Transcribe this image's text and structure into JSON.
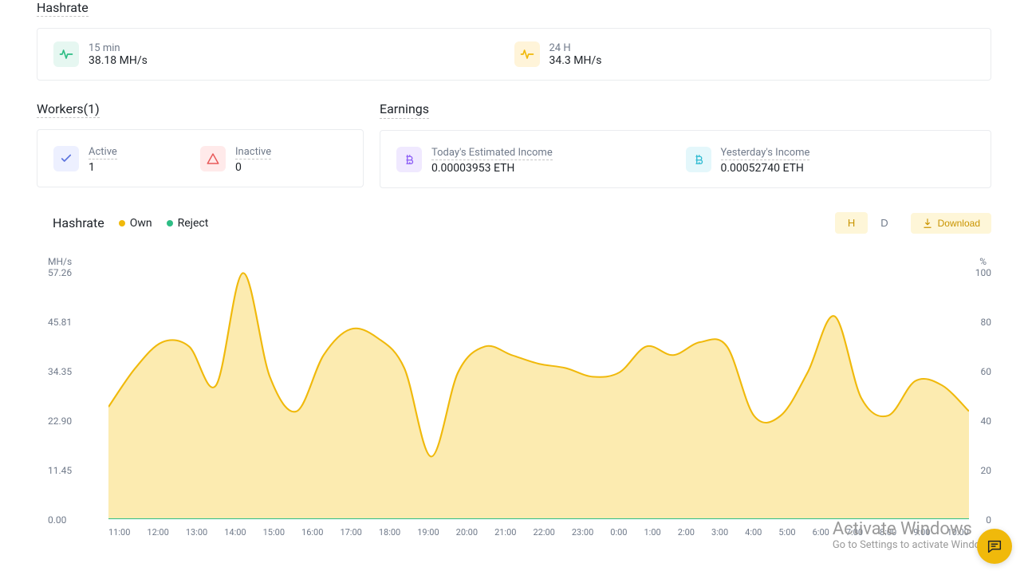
{
  "hashrate_section": {
    "title": "Hashrate",
    "left": {
      "label": "15 min",
      "value": "38.18 MH/s",
      "icon_bg": "#e6f7f1",
      "icon_stroke": "#2ebd85"
    },
    "right": {
      "label": "24 H",
      "value": "34.3 MH/s",
      "icon_bg": "#fff4d9",
      "icon_stroke": "#f0b90b"
    }
  },
  "workers_section": {
    "title": "Workers(1)",
    "active": {
      "label": "Active",
      "value": "1",
      "icon_bg": "#edf0ff",
      "icon_stroke": "#5b73de"
    },
    "inactive": {
      "label": "Inactive",
      "value": "0",
      "icon_bg": "#ffeaea",
      "icon_stroke": "#e85a5a"
    }
  },
  "earnings_section": {
    "title": "Earnings",
    "today": {
      "label": "Today's Estimated Income",
      "value": "0.00003953 ETH",
      "icon_bg": "#f0e9ff",
      "icon_stroke": "#8b5cf6"
    },
    "yesterday": {
      "label": "Yesterday's Income",
      "value": "0.00052740 ETH",
      "icon_bg": "#e4f7fb",
      "icon_stroke": "#2dbad1"
    }
  },
  "chart": {
    "title": "Hashrate",
    "legend_own": "Own",
    "legend_reject": "Reject",
    "seg_h": "H",
    "seg_d": "D",
    "active_seg": "H",
    "download_label": "Download",
    "y_left_unit": "MH/s",
    "y_right_unit": "%",
    "y_left_ticks": [
      "57.26",
      "45.81",
      "34.35",
      "22.90",
      "11.45",
      "0.00"
    ],
    "y_right_ticks": [
      "100",
      "80",
      "60",
      "40",
      "20",
      "0"
    ],
    "y_left_max": 57.26,
    "x_ticks": [
      "11:00",
      "12:00",
      "13:00",
      "14:00",
      "15:00",
      "16:00",
      "17:00",
      "18:00",
      "19:00",
      "20:00",
      "21:00",
      "22:00",
      "23:00",
      "0:00",
      "1:00",
      "2:00",
      "3:00",
      "4:00",
      "5:00",
      "6:00",
      "7:00",
      "8:00",
      "9:00",
      "10:00"
    ],
    "series_own_color_stroke": "#f0b90b",
    "series_own_color_fill": "#fbe7a2",
    "series_reject_color": "#2ebd85",
    "series_own_values": [
      26,
      35,
      41,
      40,
      31,
      57,
      33,
      25,
      38,
      44,
      42,
      35,
      14.5,
      34,
      40,
      38,
      36,
      35,
      33,
      34,
      40,
      38,
      41,
      40,
      24,
      24,
      34,
      47,
      28,
      24,
      32,
      31,
      25
    ],
    "series_reject_values": [
      0,
      0,
      0,
      0,
      0,
      0,
      0,
      0,
      0,
      0,
      0,
      0,
      0,
      0,
      0,
      0,
      0,
      0,
      0,
      0,
      0,
      0,
      0,
      0,
      0,
      0,
      0,
      0,
      0,
      0,
      0,
      0,
      0
    ],
    "background_color": "#ffffff"
  },
  "watermark": {
    "line1": "Activate Windows",
    "line2": "Go to Settings to activate Windows."
  }
}
